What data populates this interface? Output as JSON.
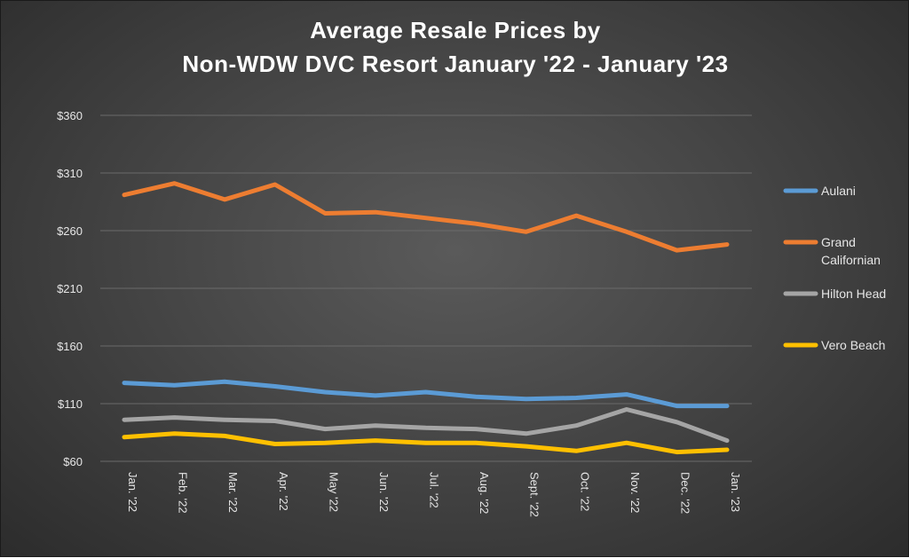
{
  "chart_data": {
    "type": "line",
    "title_lines": [
      "Average Resale Prices by",
      "Non-WDW DVC Resort January '22 - January '23"
    ],
    "categories": [
      "Jan. '22",
      "Feb. '22",
      "Mar. '22",
      "Apr. '22",
      "May '22",
      "Jun. '22",
      "Jul. '22",
      "Aug. '22",
      "Sept. '22",
      "Oct. '22",
      "Nov. '22",
      "Dec. '22",
      "Jan. '23"
    ],
    "y_ticks": [
      "$60",
      "$110",
      "$160",
      "$210",
      "$260",
      "$310",
      "$360"
    ],
    "ylim": [
      60,
      360
    ],
    "grid": true,
    "legend_position": "right",
    "series": [
      {
        "name": "Aulani",
        "color": "#5b9bd5",
        "values": [
          128,
          126,
          129,
          125,
          120,
          117,
          120,
          116,
          114,
          115,
          118,
          108,
          108
        ]
      },
      {
        "name": "Grand Californian",
        "legend_lines": [
          "Grand",
          "Californian"
        ],
        "color": "#ed7d31",
        "values": [
          291,
          301,
          287,
          300,
          275,
          276,
          271,
          266,
          259,
          273,
          259,
          243,
          248
        ]
      },
      {
        "name": "Hilton Head",
        "color": "#a5a5a5",
        "values": [
          96,
          98,
          96,
          95,
          88,
          91,
          89,
          88,
          84,
          91,
          105,
          94,
          78
        ]
      },
      {
        "name": "Vero Beach",
        "color": "#ffc000",
        "values": [
          81,
          84,
          82,
          75,
          76,
          78,
          76,
          76,
          73,
          69,
          76,
          68,
          70
        ]
      }
    ]
  }
}
